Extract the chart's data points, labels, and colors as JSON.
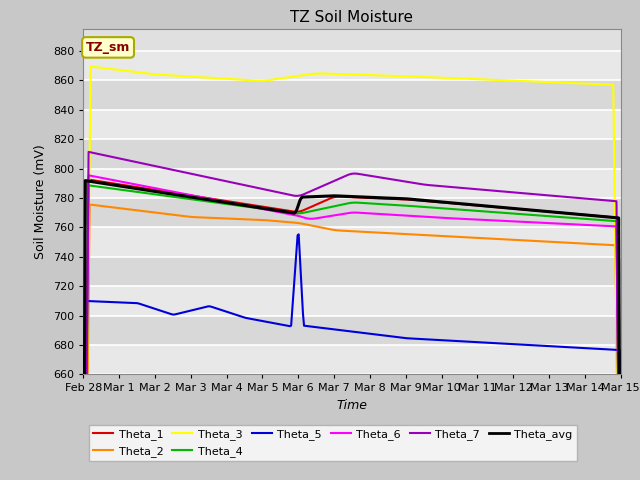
{
  "title": "TZ Soil Moisture",
  "xlabel": "Time",
  "ylabel": "Soil Moisture (mV)",
  "ylim": [
    660,
    895
  ],
  "yticks": [
    660,
    680,
    700,
    720,
    740,
    760,
    780,
    800,
    820,
    840,
    860,
    880
  ],
  "fig_bg": "#c8c8c8",
  "plot_bg": "#e0e0e0",
  "legend_label": "TZ_sm",
  "line_colors": {
    "Theta_1": "#dd0000",
    "Theta_2": "#ff8800",
    "Theta_3": "#ffff00",
    "Theta_4": "#00bb00",
    "Theta_5": "#0000dd",
    "Theta_6": "#ff00ff",
    "Theta_7": "#9900bb",
    "Theta_avg": "#000000"
  },
  "date_labels": [
    "Feb 28",
    "Mar 1",
    "Mar 2",
    "Mar 3",
    "Mar 4",
    "Mar 5",
    "Mar 6",
    "Mar 7",
    "Mar 8",
    "Mar 9",
    "Mar 10",
    "Mar 11",
    "Mar 12",
    "Mar 13",
    "Mar 14",
    "Mar 15"
  ]
}
